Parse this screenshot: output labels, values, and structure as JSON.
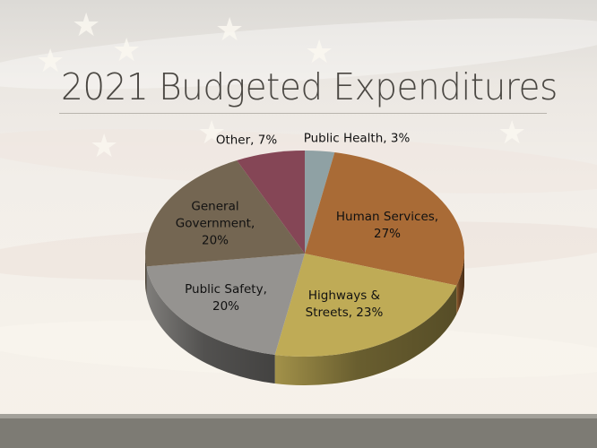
{
  "slide": {
    "title": "2021 Budgeted Expenditures",
    "footer_color": "#7d7b74"
  },
  "chart_data": {
    "type": "pie",
    "style": "3d",
    "title": "2021 Budgeted Expenditures",
    "start_angle": "12 o'clock",
    "direction": "clockwise",
    "slices": [
      {
        "name": "Public Health",
        "value": 3,
        "label": "Public Health, 3%",
        "color": "#8fa1a4"
      },
      {
        "name": "Human Services",
        "value": 27,
        "label": "Human Services, 27%",
        "color": "#a96b36"
      },
      {
        "name": "Highways & Streets",
        "value": 23,
        "label": "Highways & Streets, 23%",
        "color": "#bfab56"
      },
      {
        "name": "Public Safety",
        "value": 20,
        "label": "Public Safety, 20%",
        "color": "#959390"
      },
      {
        "name": "General Government",
        "value": 20,
        "label": "General Government, 20%",
        "color": "#746652"
      },
      {
        "name": "Other",
        "value": 7,
        "label": "Other, 7%",
        "color": "#854656"
      }
    ],
    "categories": [
      "Public Health",
      "Human Services",
      "Highways & Streets",
      "Public Safety",
      "General Government",
      "Other"
    ],
    "values": [
      3,
      27,
      23,
      20,
      20,
      7
    ],
    "unit": "%",
    "legend": "none (data labels)"
  },
  "labels": {
    "public_health": {
      "line1": "Public Health, 3%",
      "line2": ""
    },
    "human_services": {
      "line1": "Human Services,",
      "line2": "27%"
    },
    "highways": {
      "line1": "Highways &",
      "line2": "Streets, 23%"
    },
    "public_safety": {
      "line1": "Public Safety,",
      "line2": "20%"
    },
    "general_government": {
      "line1": "General",
      "line2": "Government,",
      "line3": "20%"
    },
    "other": {
      "line1": "Other, 7%"
    }
  }
}
